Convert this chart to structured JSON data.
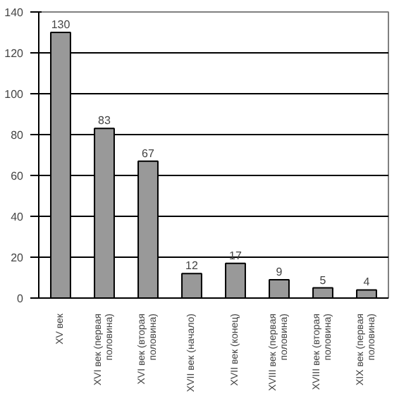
{
  "chart_data": {
    "type": "bar",
    "categories": [
      "XV век",
      "XVI век (первая половина)",
      "XVI век (вторая половина)",
      "XVII век (начало)",
      "XVII век (конец)",
      "XVIII век (первая половина)",
      "XVIII век (вторая половина)",
      "XIX век (первая половина)"
    ],
    "values": [
      130,
      83,
      67,
      12,
      17,
      9,
      5,
      4
    ],
    "color": "#999999",
    "ylim": [
      0,
      140
    ],
    "yticks": [
      0,
      20,
      40,
      60,
      80,
      100,
      120,
      140
    ],
    "grid": "y",
    "data_labels": true
  }
}
